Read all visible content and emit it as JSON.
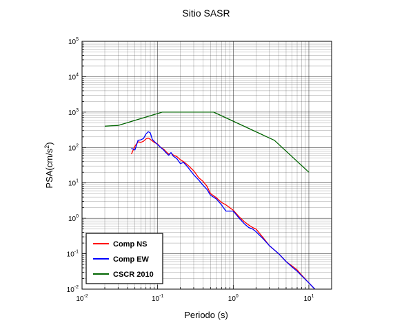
{
  "chart_data": {
    "type": "line",
    "title": "Sitio SASR",
    "xlabel": "Periodo (s)",
    "ylabel_parts": [
      "PSA(cm/s",
      "2",
      ")"
    ],
    "xscale": "log",
    "yscale": "log",
    "xlim": [
      0.01,
      20
    ],
    "ylim": [
      0.01,
      100000
    ],
    "grid": true,
    "legend_position": "bottom-left",
    "x_ticks": [
      {
        "base": "10",
        "exp": "-2",
        "value": 0.01
      },
      {
        "base": "10",
        "exp": "-1",
        "value": 0.1
      },
      {
        "base": "10",
        "exp": "0",
        "value": 1
      },
      {
        "base": "10",
        "exp": "1",
        "value": 10
      }
    ],
    "y_ticks": [
      {
        "base": "10",
        "exp": "-2",
        "value": 0.01
      },
      {
        "base": "10",
        "exp": "-1",
        "value": 0.1
      },
      {
        "base": "10",
        "exp": "0",
        "value": 1
      },
      {
        "base": "10",
        "exp": "1",
        "value": 10
      },
      {
        "base": "10",
        "exp": "2",
        "value": 100
      },
      {
        "base": "10",
        "exp": "3",
        "value": 1000
      },
      {
        "base": "10",
        "exp": "4",
        "value": 10000
      },
      {
        "base": "10",
        "exp": "5",
        "value": 100000
      }
    ],
    "series": [
      {
        "name": "Comp NS",
        "color": "#ff0000",
        "points": [
          [
            0.045,
            65
          ],
          [
            0.05,
            110
          ],
          [
            0.055,
            145
          ],
          [
            0.06,
            140
          ],
          [
            0.065,
            150
          ],
          [
            0.07,
            175
          ],
          [
            0.075,
            185
          ],
          [
            0.08,
            170
          ],
          [
            0.09,
            140
          ],
          [
            0.1,
            125
          ],
          [
            0.11,
            100
          ],
          [
            0.12,
            90
          ],
          [
            0.13,
            75
          ],
          [
            0.14,
            65
          ],
          [
            0.15,
            70
          ],
          [
            0.16,
            62
          ],
          [
            0.18,
            55
          ],
          [
            0.2,
            45
          ],
          [
            0.22,
            40
          ],
          [
            0.25,
            32
          ],
          [
            0.3,
            22
          ],
          [
            0.35,
            14
          ],
          [
            0.4,
            11
          ],
          [
            0.45,
            8
          ],
          [
            0.5,
            5
          ],
          [
            0.6,
            3.8
          ],
          [
            0.7,
            2.8
          ],
          [
            0.8,
            2.4
          ],
          [
            1.0,
            1.7
          ],
          [
            1.2,
            1.1
          ],
          [
            1.4,
            0.8
          ],
          [
            1.6,
            0.65
          ],
          [
            1.8,
            0.55
          ],
          [
            2.0,
            0.5
          ],
          [
            2.5,
            0.28
          ],
          [
            3.0,
            0.17
          ],
          [
            4.0,
            0.1
          ],
          [
            5.0,
            0.06
          ],
          [
            6.0,
            0.045
          ],
          [
            7.0,
            0.035
          ],
          [
            8.0,
            0.025
          ],
          [
            10.0,
            0.015
          ],
          [
            12.0,
            0.01
          ]
        ]
      },
      {
        "name": "Comp EW",
        "color": "#0000ff",
        "points": [
          [
            0.045,
            95
          ],
          [
            0.05,
            85
          ],
          [
            0.055,
            160
          ],
          [
            0.06,
            165
          ],
          [
            0.065,
            180
          ],
          [
            0.07,
            240
          ],
          [
            0.075,
            280
          ],
          [
            0.08,
            260
          ],
          [
            0.085,
            170
          ],
          [
            0.09,
            150
          ],
          [
            0.1,
            120
          ],
          [
            0.11,
            100
          ],
          [
            0.12,
            85
          ],
          [
            0.13,
            70
          ],
          [
            0.14,
            60
          ],
          [
            0.15,
            72
          ],
          [
            0.16,
            58
          ],
          [
            0.18,
            48
          ],
          [
            0.2,
            35
          ],
          [
            0.22,
            38
          ],
          [
            0.25,
            28
          ],
          [
            0.3,
            17
          ],
          [
            0.35,
            12
          ],
          [
            0.4,
            8.5
          ],
          [
            0.45,
            6.5
          ],
          [
            0.5,
            4.5
          ],
          [
            0.6,
            3.5
          ],
          [
            0.7,
            2.4
          ],
          [
            0.8,
            1.6
          ],
          [
            1.0,
            1.6
          ],
          [
            1.2,
            1.0
          ],
          [
            1.4,
            0.7
          ],
          [
            1.6,
            0.55
          ],
          [
            1.8,
            0.5
          ],
          [
            2.0,
            0.42
          ],
          [
            2.5,
            0.26
          ],
          [
            3.0,
            0.17
          ],
          [
            4.0,
            0.1
          ],
          [
            5.0,
            0.06
          ],
          [
            6.0,
            0.042
          ],
          [
            7.0,
            0.032
          ],
          [
            8.0,
            0.024
          ],
          [
            10.0,
            0.015
          ],
          [
            12.0,
            0.01
          ]
        ]
      },
      {
        "name": "CSCR 2010",
        "color": "#006400",
        "points": [
          [
            0.02,
            400
          ],
          [
            0.03,
            420
          ],
          [
            0.115,
            1000
          ],
          [
            0.55,
            1000
          ],
          [
            3.5,
            160
          ],
          [
            10.0,
            20
          ]
        ]
      }
    ]
  }
}
